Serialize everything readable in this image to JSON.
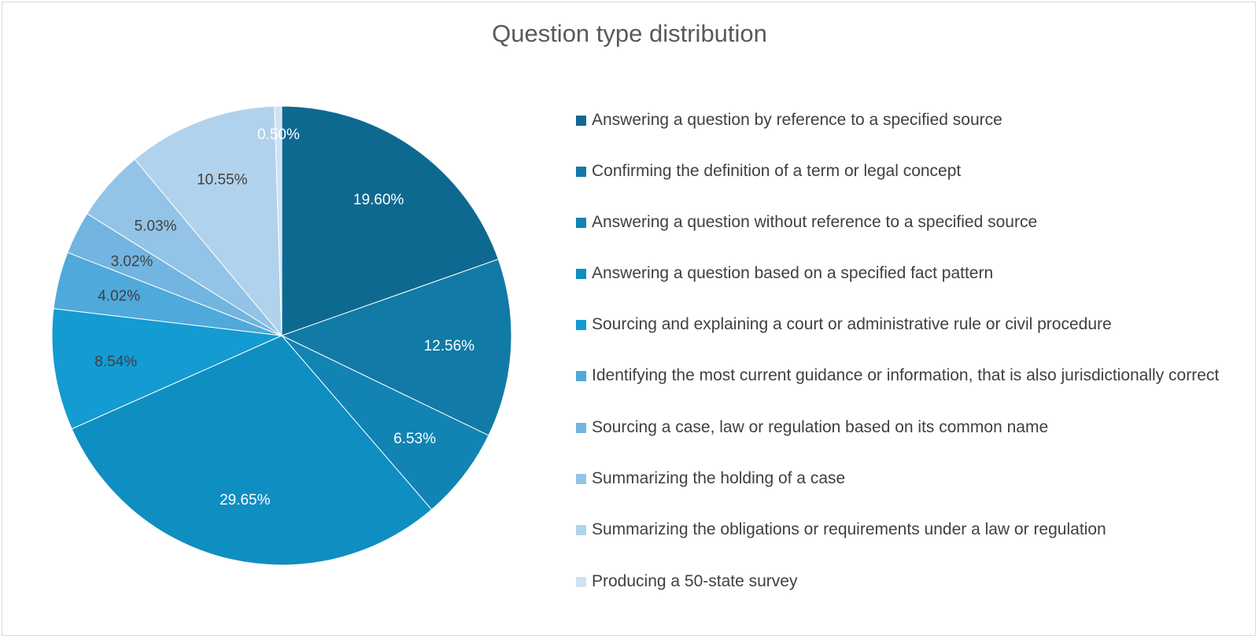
{
  "chart_data": {
    "type": "pie",
    "title": "Question type distribution",
    "slices": [
      {
        "label": "Answering a question by reference to a specified source",
        "value": 19.6,
        "display": "19.60%",
        "color": "#0e6991",
        "label_color": "#ffffff"
      },
      {
        "label": "Confirming the definition of a term or legal concept",
        "value": 12.56,
        "display": "12.56%",
        "color": "#117aa6",
        "label_color": "#ffffff"
      },
      {
        "label": "Answering a question without reference to a specified source",
        "value": 6.53,
        "display": "6.53%",
        "color": "#1184b3",
        "label_color": "#ffffff"
      },
      {
        "label": "Answering a question based on a specified fact pattern",
        "value": 29.65,
        "display": "29.65%",
        "color": "#0f8ec1",
        "label_color": "#ffffff"
      },
      {
        "label": "Sourcing and explaining a court or administrative rule or civil procedure",
        "value": 8.54,
        "display": "8.54%",
        "color": "#139bd2",
        "label_color": "#404040"
      },
      {
        "label": "Identifying the most current guidance or information, that is also jurisdictionally correct",
        "value": 4.02,
        "display": "4.02%",
        "color": "#4fa9da",
        "label_color": "#404040"
      },
      {
        "label": "Sourcing a case, law or regulation based on its common name",
        "value": 3.02,
        "display": "3.02%",
        "color": "#71b5e0",
        "label_color": "#404040"
      },
      {
        "label": "Summarizing the holding of a case",
        "value": 5.03,
        "display": "5.03%",
        "color": "#93c3e6",
        "label_color": "#404040"
      },
      {
        "label": "Summarizing the obligations or requirements under a law or regulation",
        "value": 10.55,
        "display": "10.55%",
        "color": "#b1d2ec",
        "label_color": "#404040"
      },
      {
        "label": "Producing a 50-state survey",
        "value": 0.5,
        "display": "0.50%",
        "color": "#cfe2f3",
        "label_color": "#ffffff"
      }
    ],
    "legend_position": "right"
  }
}
